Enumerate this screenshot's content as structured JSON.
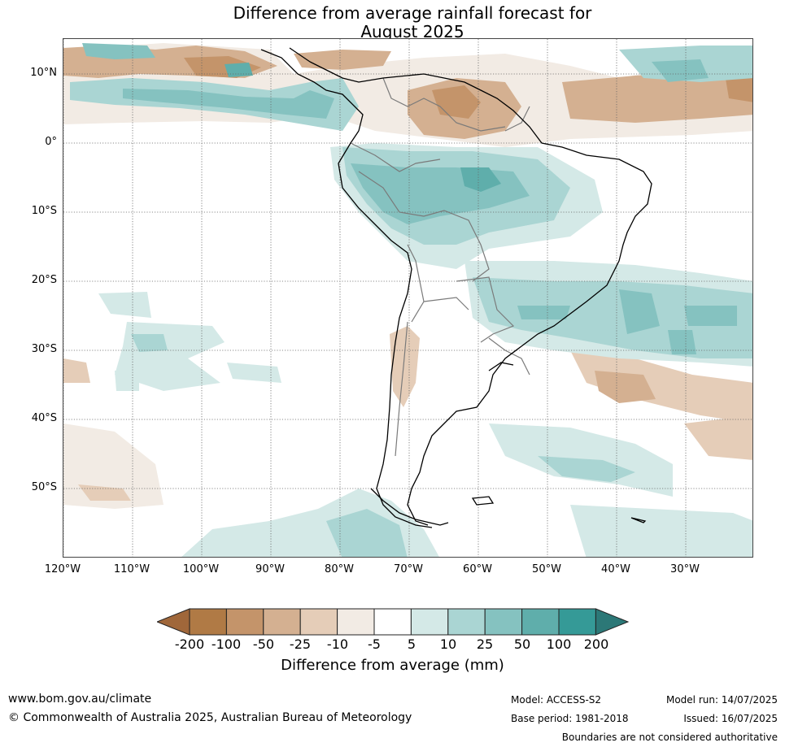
{
  "title_line1": "Difference from average rainfall forecast for",
  "title_line2": "August 2025",
  "lat_labels": [
    "10°N",
    "0°",
    "10°S",
    "20°S",
    "30°S",
    "40°S",
    "50°S"
  ],
  "lon_labels": [
    "120°W",
    "110°W",
    "100°W",
    "90°W",
    "80°W",
    "70°W",
    "60°W",
    "50°W",
    "40°W",
    "30°W"
  ],
  "colorbar": {
    "title": "Difference from average (mm)",
    "ticks": [
      "-200",
      "-100",
      "-50",
      "-25",
      "-10",
      "-5",
      "5",
      "10",
      "25",
      "50",
      "100",
      "200"
    ],
    "colors": [
      "#a0673a",
      "#b07a45",
      "#c4946a",
      "#d4b091",
      "#e5cdb8",
      "#f2ebe4",
      "#ffffff",
      "#d4e9e7",
      "#aad5d3",
      "#85c2c0",
      "#5faeab",
      "#359a97",
      "#2c7877"
    ]
  },
  "colors": {
    "dry_strong": "#c4946a",
    "dry_moderate": "#d4b091",
    "dry_light": "#e5cdb8",
    "dry_faint": "#f2ebe4",
    "wet_faint": "#d4e9e7",
    "wet_light": "#aad5d3",
    "wet_moderate": "#85c2c0",
    "wet_strong": "#5faeab",
    "coast": "#000000",
    "border": "#7a7a7a"
  },
  "footer": {
    "url": "www.bom.gov.au/climate",
    "copyright": "© Commonwealth of Australia 2025, Australian Bureau of Meteorology",
    "model": "Model: ACCESS-S2",
    "base_period": "Base period: 1981-2018",
    "model_run": "Model run: 14/07/2025",
    "issued": "Issued: 16/07/2025",
    "disclaimer": "Boundaries are not considered authoritative"
  }
}
